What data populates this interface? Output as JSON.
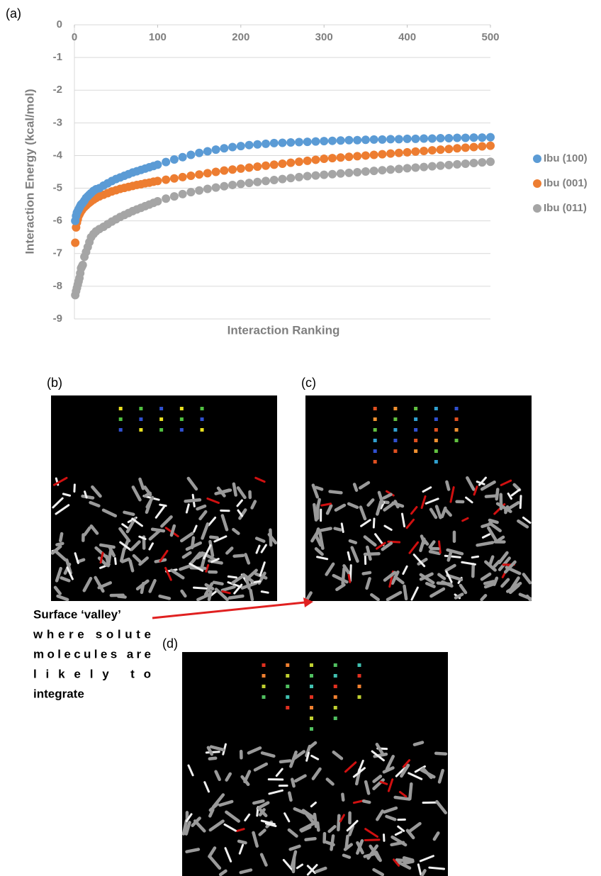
{
  "panel_labels": [
    "(a)",
    "(b)",
    "(c)",
    "(d)"
  ],
  "annotation": [
    "Surface ‘valley’",
    "where solute",
    "molecules are",
    "likely to",
    "integrate"
  ],
  "chart_data": {
    "type": "scatter",
    "ylabel": "Interaction Energy (kcal/mol)",
    "xlabel": "Interaction Ranking",
    "xlim": [
      0,
      500
    ],
    "xticks": [
      0,
      100,
      200,
      300,
      400,
      500
    ],
    "ylim": [
      -9,
      0
    ],
    "yticks": [
      0,
      -1,
      -2,
      -3,
      -4,
      -5,
      -6,
      -7,
      -8,
      -9
    ],
    "grid": true,
    "legend": "right",
    "x": [
      1,
      2,
      3,
      4,
      5,
      6,
      7,
      8,
      9,
      10,
      12,
      14,
      16,
      18,
      20,
      23,
      26,
      30,
      35,
      40,
      45,
      50,
      55,
      60,
      65,
      70,
      75,
      80,
      85,
      90,
      95,
      100,
      110,
      120,
      130,
      140,
      150,
      160,
      170,
      180,
      190,
      200,
      210,
      220,
      230,
      240,
      250,
      260,
      270,
      280,
      290,
      300,
      310,
      320,
      330,
      340,
      350,
      360,
      370,
      380,
      390,
      400,
      410,
      420,
      430,
      440,
      450,
      460,
      470,
      480,
      490,
      500
    ],
    "series": [
      {
        "name": "Ibu (100)",
        "color": "#5b9bd5",
        "values": [
          -6.0,
          -5.85,
          -5.75,
          -5.7,
          -5.65,
          -5.6,
          -5.55,
          -5.5,
          -5.48,
          -5.45,
          -5.38,
          -5.3,
          -5.25,
          -5.2,
          -5.15,
          -5.08,
          -5.03,
          -5.0,
          -4.92,
          -4.85,
          -4.78,
          -4.72,
          -4.67,
          -4.62,
          -4.57,
          -4.52,
          -4.48,
          -4.44,
          -4.4,
          -4.36,
          -4.32,
          -4.28,
          -4.2,
          -4.12,
          -4.05,
          -3.98,
          -3.92,
          -3.87,
          -3.82,
          -3.78,
          -3.74,
          -3.71,
          -3.68,
          -3.66,
          -3.64,
          -3.62,
          -3.61,
          -3.6,
          -3.59,
          -3.58,
          -3.57,
          -3.56,
          -3.55,
          -3.54,
          -3.53,
          -3.53,
          -3.52,
          -3.51,
          -3.51,
          -3.5,
          -3.5,
          -3.49,
          -3.49,
          -3.48,
          -3.48,
          -3.47,
          -3.47,
          -3.46,
          -3.46,
          -3.45,
          -3.45,
          -3.44
        ]
      },
      {
        "name": "Ibu (001)",
        "color": "#ed7d31",
        "values": [
          -6.67,
          -6.2,
          -6.05,
          -5.95,
          -5.85,
          -5.8,
          -5.75,
          -5.7,
          -5.67,
          -5.63,
          -5.58,
          -5.53,
          -5.48,
          -5.44,
          -5.4,
          -5.35,
          -5.3,
          -5.25,
          -5.2,
          -5.15,
          -5.1,
          -5.06,
          -5.02,
          -4.99,
          -4.96,
          -4.93,
          -4.9,
          -4.88,
          -4.85,
          -4.83,
          -4.8,
          -4.78,
          -4.74,
          -4.7,
          -4.66,
          -4.62,
          -4.58,
          -4.54,
          -4.5,
          -4.46,
          -4.43,
          -4.4,
          -4.37,
          -4.34,
          -4.31,
          -4.28,
          -4.25,
          -4.22,
          -4.19,
          -4.16,
          -4.13,
          -4.1,
          -4.08,
          -4.06,
          -4.04,
          -4.02,
          -4.0,
          -3.98,
          -3.96,
          -3.94,
          -3.92,
          -3.9,
          -3.88,
          -3.86,
          -3.84,
          -3.82,
          -3.8,
          -3.78,
          -3.76,
          -3.74,
          -3.72,
          -3.7
        ]
      },
      {
        "name": "Ibu (011)",
        "color": "#a5a5a5",
        "values": [
          -8.27,
          -8.15,
          -8.05,
          -7.95,
          -7.85,
          -7.75,
          -7.6,
          -7.45,
          -7.4,
          -7.35,
          -7.1,
          -6.95,
          -6.8,
          -6.65,
          -6.5,
          -6.4,
          -6.32,
          -6.25,
          -6.18,
          -6.1,
          -6.02,
          -5.95,
          -5.88,
          -5.82,
          -5.76,
          -5.7,
          -5.65,
          -5.6,
          -5.55,
          -5.5,
          -5.45,
          -5.4,
          -5.32,
          -5.25,
          -5.18,
          -5.12,
          -5.07,
          -5.02,
          -4.98,
          -4.94,
          -4.9,
          -4.87,
          -4.84,
          -4.81,
          -4.78,
          -4.75,
          -4.72,
          -4.69,
          -4.66,
          -4.63,
          -4.61,
          -4.59,
          -4.57,
          -4.55,
          -4.53,
          -4.51,
          -4.49,
          -4.47,
          -4.45,
          -4.43,
          -4.41,
          -4.39,
          -4.37,
          -4.35,
          -4.33,
          -4.31,
          -4.29,
          -4.27,
          -4.25,
          -4.23,
          -4.21,
          -4.19
        ]
      }
    ]
  }
}
